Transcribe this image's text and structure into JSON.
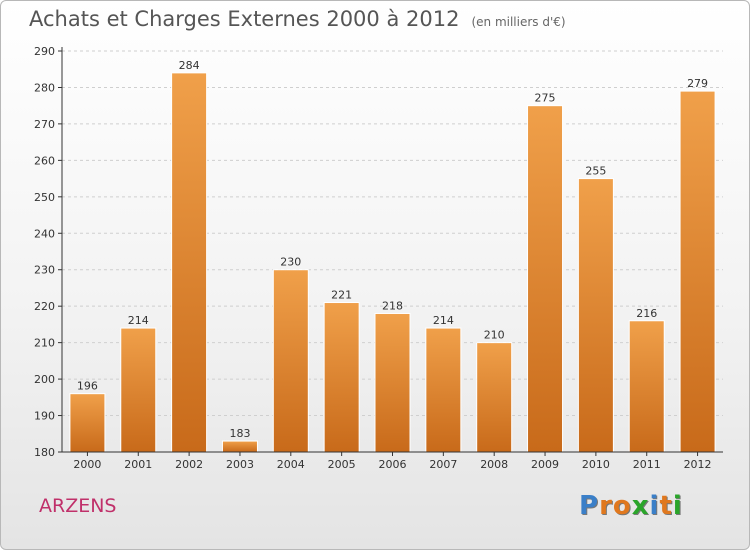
{
  "header": {
    "title": "Achats et Charges Externes 2000 à 2012",
    "subtitle": "(en milliers d'€)"
  },
  "location": "ARZENS",
  "brand": {
    "letters": [
      "P",
      "r",
      "o",
      "x",
      "i",
      "t",
      "i"
    ],
    "colors": [
      "#3a7fc8",
      "#e0781e",
      "#e0781e",
      "#2aa52a",
      "#3a7fc8",
      "#e0781e",
      "#2aa52a"
    ]
  },
  "chart_data": {
    "type": "bar",
    "title": "Achats et Charges Externes 2000 à 2012",
    "subtitle": "(en milliers d'€)",
    "categories": [
      "2000",
      "2001",
      "2002",
      "2003",
      "2004",
      "2005",
      "2006",
      "2007",
      "2008",
      "2009",
      "2010",
      "2011",
      "2012"
    ],
    "values": [
      196,
      214,
      284,
      183,
      230,
      221,
      218,
      214,
      210,
      275,
      255,
      216,
      279
    ],
    "ylim": [
      180,
      290
    ],
    "yticks": [
      180,
      190,
      200,
      210,
      220,
      230,
      240,
      250,
      260,
      270,
      280,
      290
    ],
    "grid": true,
    "bar_color": "#f0a04a",
    "bar_color_dark": "#c86a1a"
  }
}
